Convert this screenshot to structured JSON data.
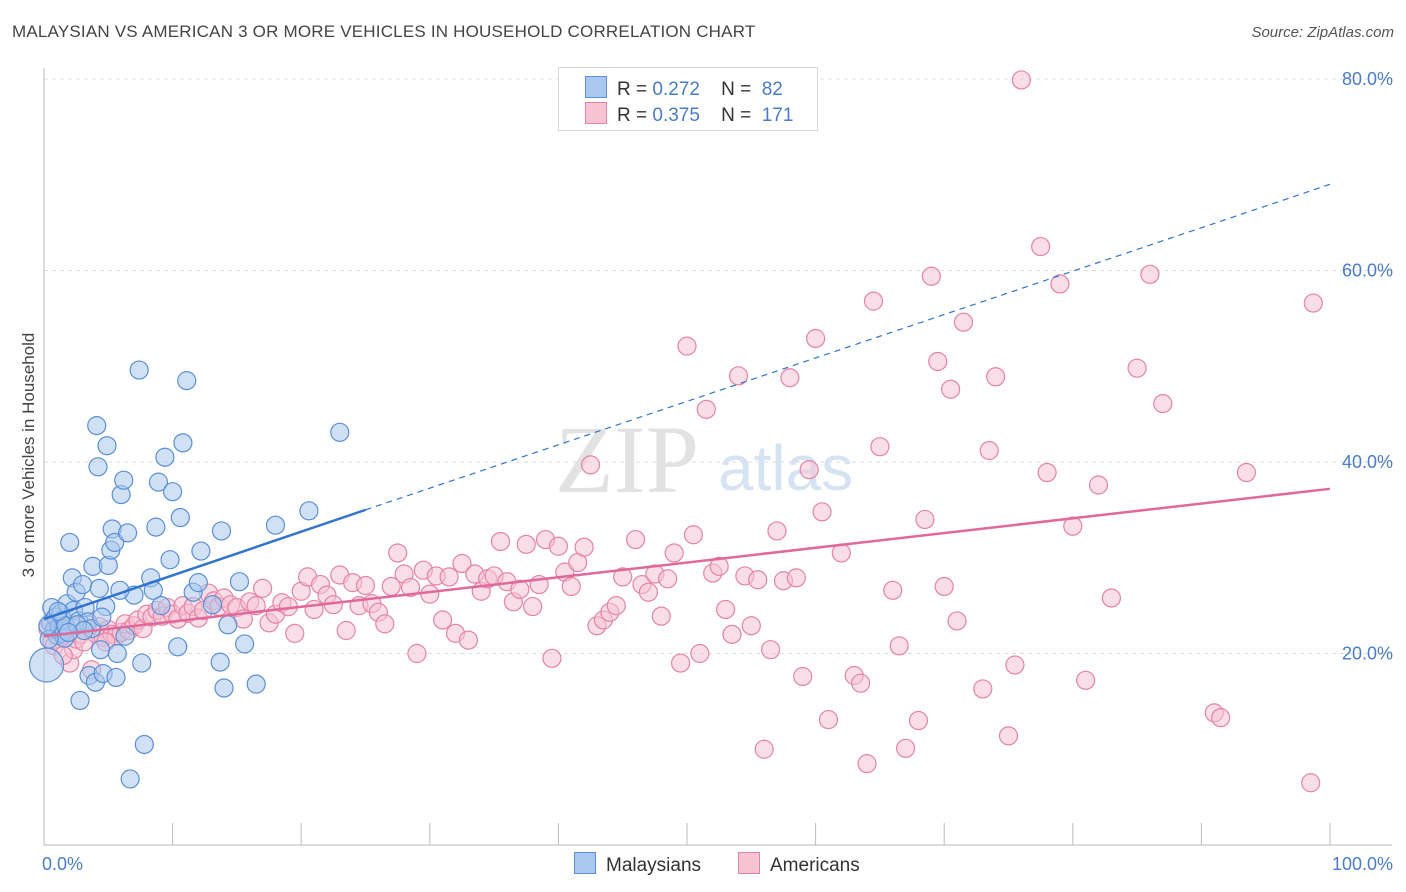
{
  "title": "MALAYSIAN VS AMERICAN 3 OR MORE VEHICLES IN HOUSEHOLD CORRELATION CHART",
  "source": "Source: ZipAtlas.com",
  "watermark": {
    "zip": "ZIP",
    "atlas": "atlas"
  },
  "legend": {
    "rows": [
      {
        "r_label": "R =",
        "r_value": "0.272",
        "n_label": "N =",
        "n_value": "82"
      },
      {
        "r_label": "R =",
        "r_value": "0.375",
        "n_label": "N =",
        "n_value": "171"
      }
    ]
  },
  "colors": {
    "malaysians_fill": "#aac8ef",
    "malaysians_stroke": "#5b8fd6",
    "malaysians_line": "#2f74cf",
    "americans_fill": "#f6c3d3",
    "americans_stroke": "#e583a5",
    "americans_line": "#e0699a",
    "grid": "#dddddd",
    "tick_text": "#4a7cc7"
  },
  "chart_data": {
    "type": "scatter",
    "title": "MALAYSIAN VS AMERICAN 3 OR MORE VEHICLES IN HOUSEHOLD CORRELATION CHART",
    "xlabel": "",
    "ylabel": "3 or more Vehicles in Household",
    "xlim": [
      0,
      100
    ],
    "ylim": [
      0,
      82
    ],
    "x_tick_labels": [
      "0.0%",
      "100.0%"
    ],
    "y_ticks": [
      20,
      40,
      60,
      80
    ],
    "y_tick_labels": [
      "20.0%",
      "40.0%",
      "60.0%",
      "80.0%"
    ],
    "grid": true,
    "legend_placement": "bottom",
    "series": [
      {
        "name": "Malaysians",
        "trend": {
          "x0": 0,
          "y0": 23.6,
          "x1": 25,
          "y1": 35,
          "dashed_to_x": 100,
          "dashed_to_y": 69
        },
        "points": [
          [
            0.5,
            23.2
          ],
          [
            0.6,
            24.8
          ],
          [
            0.8,
            22.5
          ],
          [
            0.9,
            23.8
          ],
          [
            1.0,
            21.9
          ],
          [
            1.2,
            22.8
          ],
          [
            1.3,
            24.2
          ],
          [
            1.4,
            22.1
          ],
          [
            1.5,
            23.5
          ],
          [
            1.6,
            21.6
          ],
          [
            1.7,
            22.9
          ],
          [
            1.8,
            25.2
          ],
          [
            2.0,
            31.6
          ],
          [
            2.2,
            27.9
          ],
          [
            2.3,
            24.5
          ],
          [
            2.5,
            26.4
          ],
          [
            2.7,
            23.4
          ],
          [
            2.8,
            15.1
          ],
          [
            3.0,
            27.2
          ],
          [
            3.2,
            24.8
          ],
          [
            3.4,
            23.3
          ],
          [
            3.5,
            17.7
          ],
          [
            3.7,
            22.6
          ],
          [
            3.8,
            29.1
          ],
          [
            4.0,
            17.0
          ],
          [
            4.1,
            43.8
          ],
          [
            4.2,
            39.5
          ],
          [
            4.3,
            26.8
          ],
          [
            4.4,
            20.4
          ],
          [
            4.6,
            17.9
          ],
          [
            4.8,
            24.9
          ],
          [
            4.9,
            41.7
          ],
          [
            5.0,
            29.2
          ],
          [
            5.2,
            30.8
          ],
          [
            5.3,
            33.0
          ],
          [
            5.5,
            31.6
          ],
          [
            5.6,
            17.5
          ],
          [
            5.7,
            20.0
          ],
          [
            6.0,
            36.6
          ],
          [
            6.2,
            38.1
          ],
          [
            6.5,
            32.6
          ],
          [
            6.7,
            6.9
          ],
          [
            7.4,
            49.6
          ],
          [
            7.6,
            19.0
          ],
          [
            7.8,
            10.5
          ],
          [
            8.3,
            27.9
          ],
          [
            8.5,
            26.6
          ],
          [
            8.7,
            33.2
          ],
          [
            8.9,
            37.9
          ],
          [
            9.4,
            40.5
          ],
          [
            9.8,
            29.8
          ],
          [
            10.0,
            36.9
          ],
          [
            10.4,
            20.7
          ],
          [
            10.6,
            34.2
          ],
          [
            10.8,
            42.0
          ],
          [
            11.1,
            48.5
          ],
          [
            11.6,
            26.4
          ],
          [
            12.2,
            30.7
          ],
          [
            13.1,
            25.1
          ],
          [
            13.7,
            19.1
          ],
          [
            13.8,
            32.8
          ],
          [
            14.0,
            16.4
          ],
          [
            14.3,
            23.0
          ],
          [
            15.6,
            21.0
          ],
          [
            16.5,
            16.8
          ],
          [
            18.0,
            33.4
          ],
          [
            20.6,
            34.9
          ],
          [
            23.0,
            43.1
          ],
          [
            0.2,
            18.8
          ],
          [
            0.4,
            21.5
          ],
          [
            1.1,
            24.4
          ],
          [
            2.6,
            23.0
          ],
          [
            3.1,
            22.4
          ],
          [
            4.5,
            23.8
          ],
          [
            6.3,
            21.8
          ],
          [
            7.0,
            26.1
          ],
          [
            9.1,
            25.0
          ],
          [
            12.0,
            27.4
          ],
          [
            15.2,
            27.5
          ],
          [
            0.3,
            22.9
          ],
          [
            1.9,
            22.2
          ],
          [
            5.9,
            26.6
          ]
        ]
      },
      {
        "name": "Americans",
        "trend": {
          "x0": 0,
          "y0": 21.8,
          "x1": 100,
          "y1": 37.2
        },
        "points": [
          [
            0.3,
            22.6
          ],
          [
            0.6,
            21.4
          ],
          [
            0.9,
            22.3
          ],
          [
            1.1,
            23.4
          ],
          [
            1.4,
            21.8
          ],
          [
            1.7,
            22.7
          ],
          [
            2.0,
            19.0
          ],
          [
            2.3,
            20.4
          ],
          [
            2.5,
            21.5
          ],
          [
            2.8,
            22.0
          ],
          [
            3.1,
            21.2
          ],
          [
            3.4,
            23.0
          ],
          [
            3.7,
            18.3
          ],
          [
            4.0,
            22.1
          ],
          [
            4.3,
            22.8
          ],
          [
            4.6,
            21.7
          ],
          [
            5.0,
            22.5
          ],
          [
            5.3,
            22.0
          ],
          [
            5.6,
            21.8
          ],
          [
            6.0,
            22.2
          ],
          [
            6.3,
            23.1
          ],
          [
            6.6,
            22.4
          ],
          [
            7.0,
            22.9
          ],
          [
            7.3,
            23.5
          ],
          [
            7.7,
            22.6
          ],
          [
            8.0,
            24.1
          ],
          [
            8.4,
            23.8
          ],
          [
            8.8,
            24.5
          ],
          [
            9.2,
            23.9
          ],
          [
            9.6,
            24.8
          ],
          [
            10.0,
            24.1
          ],
          [
            10.4,
            23.6
          ],
          [
            10.8,
            25.0
          ],
          [
            11.2,
            24.2
          ],
          [
            11.6,
            24.9
          ],
          [
            12.0,
            23.7
          ],
          [
            12.4,
            24.5
          ],
          [
            12.8,
            26.3
          ],
          [
            13.2,
            25.5
          ],
          [
            13.6,
            24.9
          ],
          [
            14.0,
            25.8
          ],
          [
            14.5,
            25.1
          ],
          [
            15.0,
            24.8
          ],
          [
            15.5,
            23.6
          ],
          [
            16.0,
            25.4
          ],
          [
            16.5,
            25.0
          ],
          [
            17.0,
            26.8
          ],
          [
            17.5,
            23.2
          ],
          [
            18.0,
            24.1
          ],
          [
            18.5,
            25.3
          ],
          [
            19.0,
            24.9
          ],
          [
            19.5,
            22.1
          ],
          [
            20.0,
            26.5
          ],
          [
            20.5,
            28.0
          ],
          [
            21.0,
            24.6
          ],
          [
            21.5,
            27.2
          ],
          [
            22.0,
            26.1
          ],
          [
            22.5,
            25.1
          ],
          [
            23.0,
            28.2
          ],
          [
            23.5,
            22.4
          ],
          [
            24.0,
            27.4
          ],
          [
            24.5,
            25.0
          ],
          [
            25.0,
            27.1
          ],
          [
            25.5,
            25.2
          ],
          [
            26.0,
            24.3
          ],
          [
            26.5,
            23.1
          ],
          [
            27.0,
            27.0
          ],
          [
            27.5,
            30.5
          ],
          [
            28.0,
            28.3
          ],
          [
            28.5,
            26.9
          ],
          [
            29.0,
            20.0
          ],
          [
            29.5,
            28.7
          ],
          [
            30.0,
            26.2
          ],
          [
            30.5,
            28.1
          ],
          [
            31.0,
            23.5
          ],
          [
            31.5,
            28.0
          ],
          [
            32.0,
            22.1
          ],
          [
            32.5,
            29.4
          ],
          [
            33.0,
            21.4
          ],
          [
            33.5,
            28.3
          ],
          [
            34.0,
            26.5
          ],
          [
            34.5,
            27.8
          ],
          [
            35.0,
            28.1
          ],
          [
            35.5,
            31.7
          ],
          [
            36.0,
            27.5
          ],
          [
            36.5,
            25.4
          ],
          [
            37.0,
            26.7
          ],
          [
            37.5,
            31.4
          ],
          [
            38.0,
            24.9
          ],
          [
            38.5,
            27.2
          ],
          [
            39.0,
            31.9
          ],
          [
            39.5,
            19.5
          ],
          [
            40.0,
            31.2
          ],
          [
            40.5,
            28.5
          ],
          [
            41.0,
            27.0
          ],
          [
            41.5,
            29.5
          ],
          [
            42.0,
            31.1
          ],
          [
            42.5,
            39.7
          ],
          [
            43.0,
            22.9
          ],
          [
            43.5,
            23.5
          ],
          [
            44.0,
            24.3
          ],
          [
            44.5,
            25.0
          ],
          [
            45.0,
            28.0
          ],
          [
            46.0,
            31.9
          ],
          [
            46.5,
            27.2
          ],
          [
            47.0,
            26.4
          ],
          [
            47.5,
            28.3
          ],
          [
            48.0,
            23.9
          ],
          [
            48.5,
            27.8
          ],
          [
            49.0,
            30.5
          ],
          [
            49.5,
            19.0
          ],
          [
            50.0,
            52.1
          ],
          [
            50.5,
            32.4
          ],
          [
            51.0,
            20.0
          ],
          [
            51.5,
            45.5
          ],
          [
            52.0,
            28.4
          ],
          [
            52.5,
            29.1
          ],
          [
            53.0,
            24.6
          ],
          [
            53.5,
            22.0
          ],
          [
            54.0,
            49.0
          ],
          [
            54.5,
            28.1
          ],
          [
            55.0,
            22.9
          ],
          [
            55.5,
            27.7
          ],
          [
            56.0,
            10.0
          ],
          [
            56.5,
            20.4
          ],
          [
            57.0,
            32.8
          ],
          [
            57.5,
            27.6
          ],
          [
            58.0,
            48.8
          ],
          [
            58.5,
            27.9
          ],
          [
            59.0,
            17.6
          ],
          [
            59.5,
            39.2
          ],
          [
            60.0,
            52.9
          ],
          [
            60.5,
            34.8
          ],
          [
            61.0,
            13.1
          ],
          [
            62.0,
            30.5
          ],
          [
            63.0,
            17.7
          ],
          [
            63.5,
            16.9
          ],
          [
            64.0,
            8.5
          ],
          [
            64.5,
            56.8
          ],
          [
            65.0,
            41.6
          ],
          [
            66.0,
            26.6
          ],
          [
            66.5,
            20.8
          ],
          [
            67.0,
            10.1
          ],
          [
            68.0,
            13.0
          ],
          [
            68.5,
            34.0
          ],
          [
            69.0,
            59.4
          ],
          [
            69.5,
            50.5
          ],
          [
            70.0,
            27.0
          ],
          [
            70.5,
            47.6
          ],
          [
            71.0,
            23.4
          ],
          [
            71.5,
            54.6
          ],
          [
            73.0,
            16.3
          ],
          [
            73.5,
            41.2
          ],
          [
            74.0,
            48.9
          ],
          [
            75.0,
            11.4
          ],
          [
            75.5,
            18.8
          ],
          [
            76.0,
            79.9
          ],
          [
            77.5,
            62.5
          ],
          [
            78.0,
            38.9
          ],
          [
            79.0,
            58.6
          ],
          [
            80.0,
            33.3
          ],
          [
            81.0,
            17.2
          ],
          [
            82.0,
            37.6
          ],
          [
            83.0,
            25.8
          ],
          [
            85.0,
            49.8
          ],
          [
            86.0,
            59.6
          ],
          [
            87.0,
            46.1
          ],
          [
            91.0,
            13.8
          ],
          [
            91.5,
            13.3
          ],
          [
            93.5,
            38.9
          ],
          [
            98.5,
            6.5
          ],
          [
            98.7,
            56.6
          ],
          [
            0.8,
            20.8
          ],
          [
            1.5,
            19.8
          ],
          [
            4.8,
            21.2
          ]
        ]
      }
    ]
  },
  "bottom_legend": {
    "malaysians": "Malaysians",
    "americans": "Americans"
  }
}
